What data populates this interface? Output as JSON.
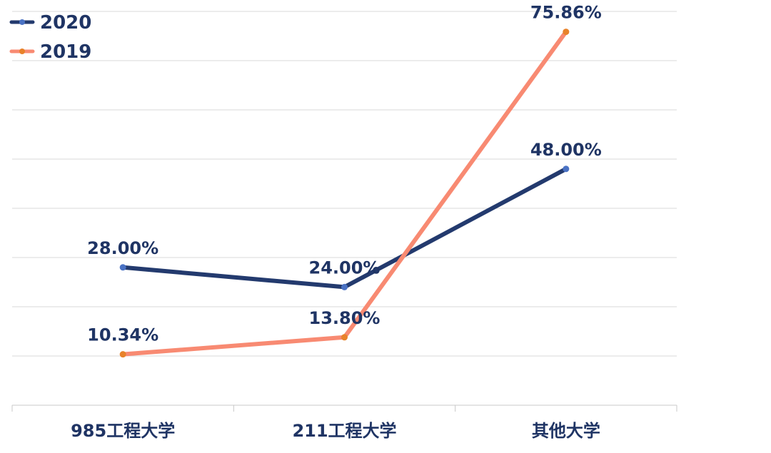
{
  "chart_data": {
    "type": "line",
    "title": "",
    "xlabel": "",
    "ylabel": "",
    "categories": [
      "985工程大学",
      "211工程大学",
      "其他大学"
    ],
    "ylim": [
      0,
      80
    ],
    "grid": true,
    "legend_position": "top-left",
    "series": [
      {
        "name": "2020",
        "values": [
          28.0,
          24.0,
          48.0
        ],
        "labels": [
          "28.00%",
          "24.00%",
          "48.00%"
        ],
        "color": "#233a6e",
        "marker_color": "#4a72c4"
      },
      {
        "name": "2019",
        "values": [
          10.34,
          13.8,
          75.86
        ],
        "labels": [
          "10.34%",
          "13.80%",
          "75.86%"
        ],
        "color": "#f88a72",
        "marker_color": "#e8822a"
      }
    ]
  }
}
